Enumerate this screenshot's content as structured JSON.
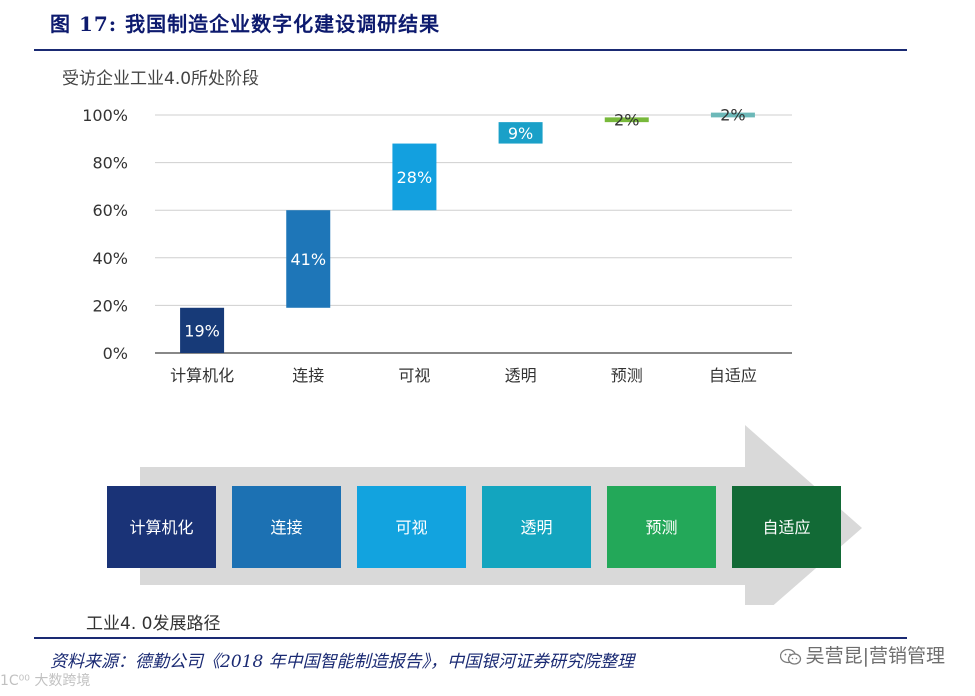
{
  "header": {
    "figure_title": "图 17:  我国制造企业数字化建设调研结果",
    "chart_subtitle": "受访企业工业4.0所处阶段"
  },
  "chart_data": {
    "type": "bar",
    "subtype": "waterfall",
    "categories": [
      "计算机化",
      "连接",
      "可视",
      "透明",
      "预测",
      "自适应"
    ],
    "values": [
      19,
      41,
      28,
      9,
      2,
      2
    ],
    "value_labels": [
      "19%",
      "41%",
      "28%",
      "9%",
      "2%",
      "2%"
    ],
    "bases": [
      0,
      19,
      60,
      88,
      97,
      99
    ],
    "colors": [
      "#173a78",
      "#1e76b8",
      "#13a0df",
      "#1aa0c8",
      "#78b93b",
      "#6cb8b8"
    ],
    "yticks": [
      "0%",
      "20%",
      "40%",
      "60%",
      "80%",
      "100%"
    ],
    "ylim": [
      0,
      100
    ],
    "grid": true
  },
  "flow": {
    "steps": [
      {
        "label": "计算机化",
        "color": "#1a3377"
      },
      {
        "label": "连接",
        "color": "#1c71b3"
      },
      {
        "label": "可视",
        "color": "#12a3df"
      },
      {
        "label": "透明",
        "color": "#13a5bf"
      },
      {
        "label": "预测",
        "color": "#23a859"
      },
      {
        "label": "自适应",
        "color": "#126a36"
      }
    ],
    "arrow_color": "#d9d9d9",
    "label": "工业4. 0发展路径"
  },
  "footer": {
    "source": "资料来源：德勤公司《2018 年中国智能制造报告》，中国银河证券研究院整理",
    "watermark": "吴营昆|营销管理",
    "watermark2": "1C⁰⁰ 大数跨境"
  }
}
